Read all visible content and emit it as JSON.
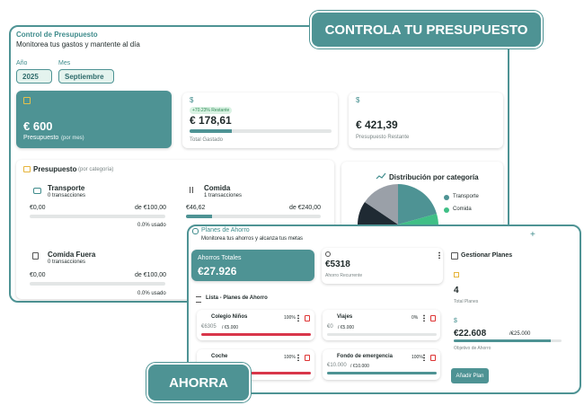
{
  "badges": {
    "budget": "CONTROLA TU PRESUPUESTO",
    "savings": "AHORRA"
  },
  "budget": {
    "title": "Control de Presupuesto",
    "subtitle": "Monitorea tus gastos y mantente al día",
    "year_label": "Año",
    "year": "2025",
    "month_label": "Mes",
    "month": "Septiembre",
    "cards": [
      {
        "value": "€ 600",
        "label": "Presupuesto",
        "note": "(por mes)"
      },
      {
        "icon": "$",
        "badge": "+70.23% Restante",
        "value": "€ 178,61",
        "label": "Total Gastado"
      },
      {
        "icon": "$",
        "value": "€ 421,39",
        "label": "Presupuesto Restante"
      }
    ],
    "categories_title": "Presupuesto",
    "categories_note": "(por categoría)",
    "categories": [
      {
        "name": "Transporte",
        "count": "0 transacciones",
        "spent": "€0,00",
        "limit": "de €100,00",
        "used": "0.0% usado"
      },
      {
        "name": "Comida",
        "count": "1 transacciones",
        "spent": "€46,62",
        "limit": "de €240,00"
      },
      {
        "name": "Comida Fuera",
        "count": "0 transacciones",
        "spent": "€0,00",
        "limit": "de €100,00",
        "used": "0.0% usado"
      }
    ],
    "distribution_title": "Distribución por categoría",
    "legend": [
      "Transporte",
      "Comida"
    ]
  },
  "savings": {
    "title": "Planes de Ahorro",
    "subtitle": "Monitorea tus ahorros y alcanza tus metas",
    "add": "+",
    "total_label": "Ahorros Totales",
    "total": "€27.926",
    "recurring": "€5318",
    "recurring_label": "Ahorro Recurrente",
    "manage": "Gestionar Planes",
    "plans_count": "4",
    "plans_count_label": "Total Planes",
    "goal_icon": "$",
    "goal": "€22.608",
    "goal_of": "/€25.000",
    "goal_label": "Objetivo de Ahorro",
    "add_button": "Añadir Plan",
    "list_title": "Lista - Planes de Ahorro",
    "plans": [
      {
        "name": "Colegio Niños",
        "pct": "100%",
        "saved": "€6305",
        "target": "/ €5.000"
      },
      {
        "name": "Viajes",
        "pct": "0%",
        "saved": "€0",
        "target": "/ €5.000"
      },
      {
        "name": "Coche",
        "pct": "100%"
      },
      {
        "name": "Fondo de emergencia",
        "pct": "100%",
        "saved": "€10.000",
        "target": "/ €10.000"
      }
    ]
  }
}
